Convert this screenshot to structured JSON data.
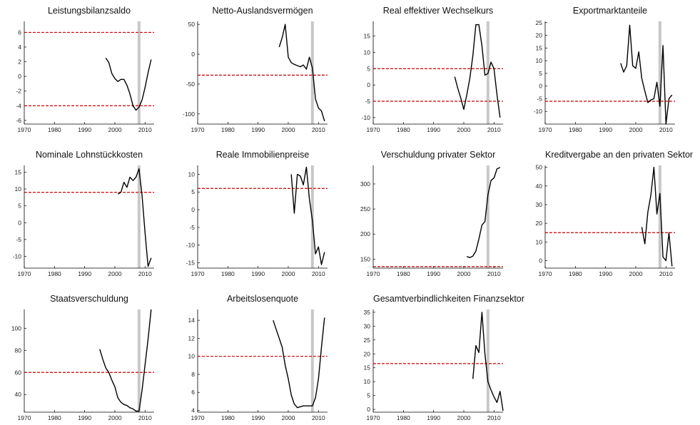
{
  "colors": {
    "series": "#000000",
    "threshold": "#cc0000",
    "marker_band": "#c8c8c8"
  },
  "chart_data": [
    {
      "type": "line",
      "title": "Leistungsbilanzsaldo",
      "xlim": [
        1970,
        2013
      ],
      "ylim": [
        -6.5,
        7.5
      ],
      "xticks": [
        1970,
        1980,
        1990,
        2000,
        2010
      ],
      "yticks": [
        -6,
        -4,
        -2,
        0,
        2,
        4,
        6
      ],
      "x": [
        1997,
        1998,
        1999,
        2000,
        2001,
        2002,
        2003,
        2004,
        2005,
        2006,
        2007,
        2008,
        2009,
        2010,
        2011,
        2012
      ],
      "values": [
        2.5,
        1.9,
        0.4,
        -0.3,
        -0.7,
        -0.4,
        -0.4,
        -1.2,
        -2.4,
        -4.0,
        -4.6,
        -4.2,
        -3.2,
        -1.5,
        0.5,
        2.3
      ],
      "thresholds": [
        6,
        -4
      ],
      "marker_x": 2008
    },
    {
      "type": "line",
      "title": "Netto-Auslandsvermögen",
      "xlim": [
        1970,
        2013
      ],
      "ylim": [
        -117,
        55
      ],
      "xticks": [
        1970,
        1980,
        1990,
        2000,
        2010
      ],
      "yticks": [
        -100,
        -50,
        0,
        50
      ],
      "x": [
        1997,
        1998,
        1999,
        2000,
        2001,
        2002,
        2003,
        2004,
        2005,
        2006,
        2007,
        2008,
        2009,
        2010,
        2011,
        2012
      ],
      "values": [
        12,
        28,
        50,
        -5,
        -14,
        -17,
        -19,
        -21,
        -18,
        -25,
        -5,
        -23,
        -75,
        -90,
        -95,
        -112
      ],
      "thresholds": [
        -35
      ],
      "marker_x": 2008
    },
    {
      "type": "line",
      "title": "Real effektiver Wechselkurs",
      "xlim": [
        1970,
        2013
      ],
      "ylim": [
        -12,
        19.5
      ],
      "xticks": [
        1970,
        1980,
        1990,
        2000,
        2010
      ],
      "yticks": [
        -10,
        -5,
        0,
        5,
        10,
        15
      ],
      "x": [
        1997,
        1998,
        1999,
        2000,
        2001,
        2002,
        2003,
        2004,
        2005,
        2006,
        2007,
        2008,
        2009,
        2010,
        2011,
        2012
      ],
      "values": [
        2.5,
        -1,
        -4,
        -7.5,
        -3,
        2,
        9,
        18.5,
        18.5,
        12,
        3,
        3.5,
        7,
        5,
        -3,
        -10
      ],
      "thresholds": [
        5,
        -5
      ],
      "marker_x": 2008
    },
    {
      "type": "line",
      "title": "Exportmarktanteile",
      "xlim": [
        1970,
        2013
      ],
      "ylim": [
        -15,
        25.5
      ],
      "xticks": [
        1970,
        1980,
        1990,
        2000,
        2010
      ],
      "yticks": [
        -10,
        -5,
        0,
        5,
        10,
        15,
        20,
        25
      ],
      "x": [
        1995,
        1996,
        1997,
        1998,
        1999,
        2000,
        2001,
        2002,
        2003,
        2004,
        2005,
        2006,
        2007,
        2008,
        2009,
        2010,
        2011,
        2012
      ],
      "values": [
        9,
        5.5,
        8,
        24,
        8,
        7,
        13.5,
        3,
        -2,
        -6.5,
        -5.5,
        -5,
        1.5,
        -8,
        16,
        -15,
        -5,
        -3.5
      ],
      "thresholds": [
        -6
      ],
      "marker_x": 2008
    },
    {
      "type": "line",
      "title": "Nominale Lohnstückkosten",
      "xlim": [
        1970,
        2013
      ],
      "ylim": [
        -13.5,
        17
      ],
      "xticks": [
        1970,
        1980,
        1990,
        2000,
        2010
      ],
      "yticks": [
        -10,
        -5,
        0,
        5,
        10,
        15
      ],
      "x": [
        2001,
        2002,
        2003,
        2004,
        2005,
        2006,
        2007,
        2008,
        2009,
        2010,
        2011,
        2012
      ],
      "values": [
        8.5,
        9,
        12,
        10.5,
        13.5,
        12.5,
        13.5,
        16,
        8,
        -3,
        -13,
        -10.5
      ],
      "thresholds": [
        9
      ],
      "marker_x": 2008
    },
    {
      "type": "line",
      "title": "Reale Immobilienpreise",
      "xlim": [
        1970,
        2013
      ],
      "ylim": [
        -16.5,
        12.5
      ],
      "xticks": [
        1970,
        1980,
        1990,
        2000,
        2010
      ],
      "yticks": [
        -15,
        -10,
        -5,
        0,
        5,
        10
      ],
      "x": [
        2001,
        2002,
        2003,
        2004,
        2005,
        2006,
        2007,
        2008,
        2009,
        2010,
        2011,
        2012
      ],
      "values": [
        10,
        -1,
        10,
        9.5,
        7,
        12,
        3,
        -3,
        -12.5,
        -10.5,
        -15.5,
        -12
      ],
      "thresholds": [
        6
      ],
      "marker_x": 2008
    },
    {
      "type": "line",
      "title": "Verschuldung privater Sektor",
      "xlim": [
        1970,
        2013
      ],
      "ylim": [
        132,
        337
      ],
      "xticks": [
        1970,
        1980,
        1990,
        2000,
        2010
      ],
      "yticks": [
        150,
        200,
        250,
        300
      ],
      "x": [
        2001,
        2002,
        2003,
        2004,
        2005,
        2006,
        2007,
        2008,
        2009,
        2010,
        2011,
        2012
      ],
      "values": [
        155,
        153,
        156,
        166,
        190,
        218,
        225,
        278,
        307,
        312,
        330,
        333
      ],
      "thresholds": [
        135
      ],
      "marker_x": 2008
    },
    {
      "type": "line",
      "title": "Kreditvergabe an den privaten Sektor",
      "xlim": [
        1970,
        2013
      ],
      "ylim": [
        -4,
        51
      ],
      "xticks": [
        1970,
        1980,
        1990,
        2000,
        2010
      ],
      "yticks": [
        0,
        10,
        20,
        30,
        40,
        50
      ],
      "x": [
        2002,
        2003,
        2004,
        2005,
        2006,
        2007,
        2008,
        2009,
        2010,
        2011,
        2012
      ],
      "values": [
        18,
        9,
        26,
        35,
        50,
        25,
        36,
        2,
        0,
        15,
        -3
      ],
      "thresholds": [
        15
      ],
      "marker_x": 2008
    },
    {
      "type": "line",
      "title": "Staatsverschuldung",
      "xlim": [
        1970,
        2013
      ],
      "ylim": [
        24,
        117
      ],
      "xticks": [
        1970,
        1980,
        1990,
        2000,
        2010
      ],
      "yticks": [
        40,
        60,
        80,
        100
      ],
      "x": [
        1995,
        1996,
        1997,
        1998,
        1999,
        2000,
        2001,
        2002,
        2003,
        2004,
        2005,
        2006,
        2007,
        2008,
        2009,
        2010,
        2011,
        2012
      ],
      "values": [
        81,
        72,
        64,
        60,
        53,
        47,
        37,
        33,
        31,
        30,
        28,
        27,
        25,
        25,
        44,
        67,
        90,
        117
      ],
      "thresholds": [
        60
      ],
      "marker_x": 2008
    },
    {
      "type": "line",
      "title": "Arbeitslosenquote",
      "xlim": [
        1970,
        2013
      ],
      "ylim": [
        3.8,
        15.2
      ],
      "xticks": [
        1970,
        1980,
        1990,
        2000,
        2010
      ],
      "yticks": [
        4,
        6,
        8,
        10,
        12,
        14
      ],
      "x": [
        1995,
        1996,
        1997,
        1998,
        1999,
        2000,
        2001,
        2002,
        2003,
        2004,
        2005,
        2006,
        2007,
        2008,
        2009,
        2010,
        2011,
        2012
      ],
      "values": [
        14,
        13,
        12,
        11,
        9,
        7.5,
        5.7,
        4.7,
        4.3,
        4.4,
        4.5,
        4.5,
        4.5,
        4.5,
        5.4,
        7.5,
        11,
        14.3
      ],
      "thresholds": [
        10
      ],
      "marker_x": 2008
    },
    {
      "type": "line",
      "title": "Gesamtverbindlichkeiten Finanzsektor",
      "xlim": [
        1970,
        2013
      ],
      "ylim": [
        -1,
        36
      ],
      "xticks": [
        1970,
        1980,
        1990,
        2000,
        2010
      ],
      "yticks": [
        0,
        5,
        10,
        15,
        20,
        25,
        30,
        35
      ],
      "x": [
        2003,
        2004,
        2005,
        2006,
        2007,
        2008,
        2009,
        2010,
        2011,
        2012,
        2013
      ],
      "values": [
        11,
        23,
        20.5,
        35,
        20,
        10,
        7,
        4.5,
        2.5,
        6.5,
        -0.5
      ],
      "thresholds": [
        16.5
      ],
      "marker_x": 2008
    }
  ]
}
